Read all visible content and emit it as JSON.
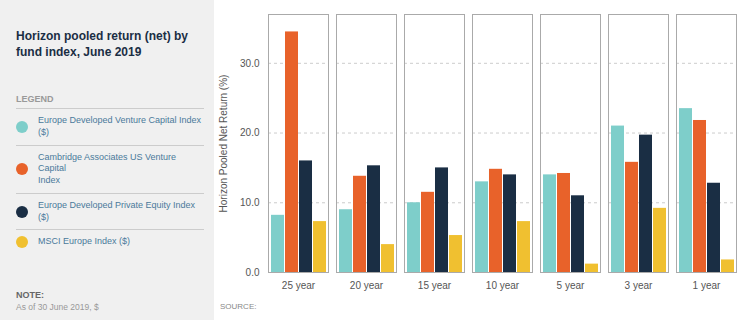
{
  "chart_data": {
    "type": "bar",
    "title": "Horizon pooled return (net) by\nfund index, June 2019",
    "ylabel": "Horizon Pooled Net Return (%)",
    "categories": [
      "25 year",
      "20 year",
      "15 year",
      "10 year",
      "5 year",
      "3 year",
      "1 year"
    ],
    "series": [
      {
        "name": "Europe Developed Venture Capital Index\n($)",
        "color": "#7ececa",
        "values": [
          8.2,
          9.0,
          10.0,
          13.0,
          14.0,
          21.0,
          23.5
        ]
      },
      {
        "name": "Cambridge Associates US Venture Capital\nIndex",
        "color": "#e8622a",
        "values": [
          34.5,
          13.8,
          11.5,
          14.8,
          14.2,
          15.8,
          21.8
        ]
      },
      {
        "name": "Europe Developed Private Equity Index ($)",
        "color": "#1a2e44",
        "values": [
          16.0,
          15.3,
          15.0,
          14.0,
          11.0,
          19.7,
          12.8
        ]
      },
      {
        "name": "MSCI Europe Index ($)",
        "color": "#f0c030",
        "values": [
          7.3,
          4.0,
          5.3,
          7.3,
          1.2,
          9.2,
          1.8
        ]
      }
    ],
    "ylim": [
      0,
      37
    ],
    "yticks": [
      {
        "value": 0,
        "label": "0.0"
      },
      {
        "value": 10,
        "label": "10.0"
      },
      {
        "value": 20,
        "label": "20.0"
      },
      {
        "value": 30,
        "label": "30.0"
      }
    ],
    "grid": true,
    "legend": "left",
    "legend_title": "LEGEND",
    "note_title": "NOTE:",
    "note": "As of 30 June 2019, $",
    "source": "SOURCE:"
  }
}
